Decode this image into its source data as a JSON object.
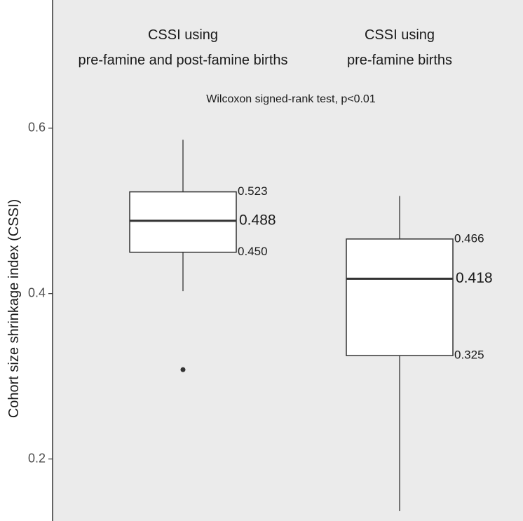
{
  "chart_data": {
    "type": "box",
    "ylabel": "Cohort size shrinkage index (CSSI)",
    "ylim": [
      0.125,
      0.755
    ],
    "yticks": [
      "0.2",
      "0.4",
      "0.6"
    ],
    "grid": false,
    "annotation": "Wilcoxon signed-rank test, p<0.01",
    "groups": [
      {
        "label_lines": [
          "CSSI using",
          "pre-famine and post-famine births"
        ],
        "whisker_low": 0.403,
        "q1": 0.45,
        "median": 0.488,
        "q3": 0.523,
        "whisker_high": 0.586,
        "outliers": [
          0.308
        ],
        "q1_label": "0.450",
        "median_label": "0.488",
        "q3_label": "0.523"
      },
      {
        "label_lines": [
          "CSSI using",
          "pre-famine births"
        ],
        "whisker_low": 0.137,
        "q1": 0.325,
        "median": 0.418,
        "q3": 0.466,
        "whisker_high": 0.518,
        "outliers": [],
        "q1_label": "0.325",
        "median_label": "0.418",
        "q3_label": "0.466"
      }
    ]
  }
}
